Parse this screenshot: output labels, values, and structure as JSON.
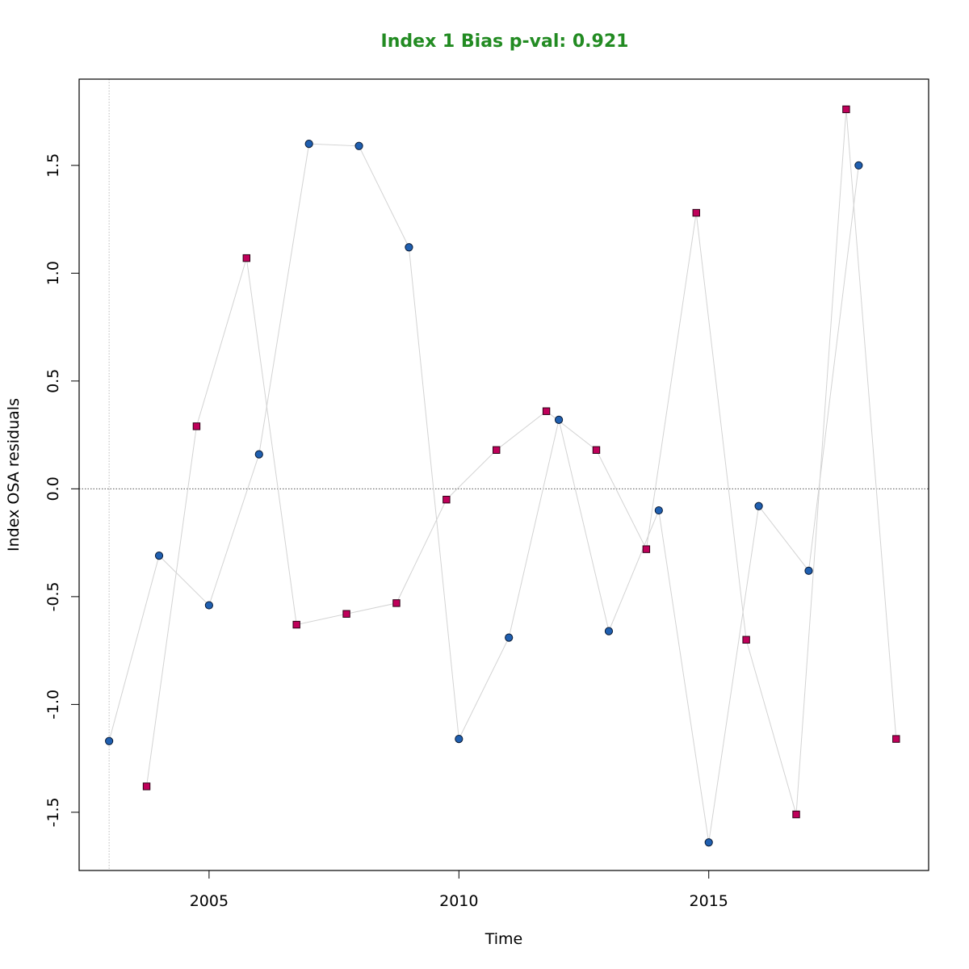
{
  "chart_data": {
    "type": "scatter",
    "title": "Index 1 Bias p-val: 0.921",
    "title_color": "#228B22",
    "xlabel": "Time",
    "ylabel": "Index OSA residuals",
    "xlim": [
      2002.4,
      2019.4
    ],
    "ylim": [
      -1.77,
      1.9
    ],
    "x_ticks": [
      2005,
      2010,
      2015
    ],
    "x_tick_labels": [
      "2005",
      "2010",
      "2015"
    ],
    "y_ticks": [
      -1.5,
      -1.0,
      -0.5,
      0.0,
      0.5,
      1.0,
      1.5
    ],
    "y_tick_labels": [
      "-1.5",
      "-1.0",
      "-0.5",
      "0.0",
      "0.5",
      "1.0",
      "1.5"
    ],
    "reference_line_y": 0,
    "reference_line_x": 2003.0,
    "line_color": "#d3d3d3",
    "series": [
      {
        "marker": "circle",
        "color": "#1f5fb0",
        "x": [
          2003.0,
          2004.0,
          2005.0,
          2006.0,
          2007.0,
          2008.0,
          2009.0,
          2010.0,
          2011.0,
          2012.0,
          2013.0,
          2014.0,
          2015.0,
          2016.0,
          2017.0,
          2018.0
        ],
        "y": [
          -1.17,
          -0.31,
          -0.54,
          0.16,
          1.6,
          1.59,
          1.12,
          -1.16,
          -0.69,
          0.32,
          -0.66,
          -0.1,
          -1.64,
          -0.08,
          -0.38,
          1.5
        ]
      },
      {
        "marker": "square",
        "color": "#c0005a",
        "x": [
          2003.75,
          2004.75,
          2005.75,
          2006.75,
          2007.75,
          2008.75,
          2009.75,
          2010.75,
          2011.75,
          2012.75,
          2013.75,
          2014.75,
          2015.75,
          2016.75,
          2017.75,
          2018.75
        ],
        "y": [
          -1.38,
          0.29,
          1.07,
          -0.63,
          -0.58,
          -0.53,
          -0.05,
          0.18,
          0.36,
          0.18,
          -0.28,
          1.28,
          -0.7,
          -1.51,
          1.76,
          -1.16
        ]
      }
    ]
  }
}
